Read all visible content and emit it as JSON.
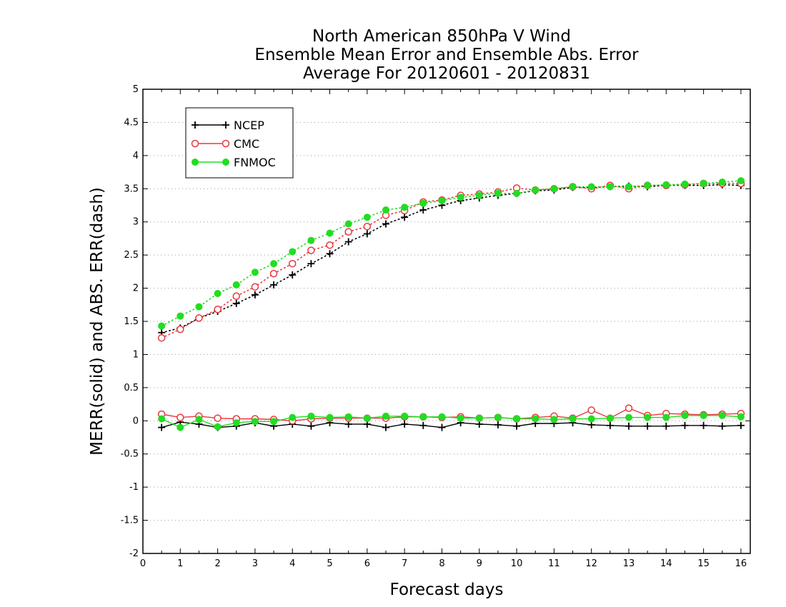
{
  "chart_data": {
    "type": "line",
    "title_lines": [
      "North American 850hPa V Wind",
      "Ensemble Mean Error and Ensemble Abs. Error",
      "Average For 20120601 - 20120831"
    ],
    "xlabel": "Forecast days",
    "ylabel": "MERR(solid) and ABS. ERR(dash)",
    "xlim": [
      0,
      16.25
    ],
    "ylim": [
      -2,
      5
    ],
    "x_ticks": [
      "0",
      "1",
      "2",
      "3",
      "4",
      "5",
      "6",
      "7",
      "8",
      "9",
      "10",
      "11",
      "12",
      "13",
      "14",
      "15",
      "16"
    ],
    "y_ticks": [
      "5",
      "4.5",
      "4",
      "3.5",
      "3",
      "2.5",
      "2",
      "1.5",
      "1",
      "0.5",
      "0",
      "-0.5",
      "-1",
      "-1.5",
      "-2"
    ],
    "grid": "horizontal dotted",
    "legend_position": "top-left",
    "x": [
      0.5,
      1,
      1.5,
      2,
      2.5,
      3,
      3.5,
      4,
      4.5,
      5,
      5.5,
      6,
      6.5,
      7,
      7.5,
      8,
      8.5,
      9,
      9.5,
      10,
      10.5,
      11,
      11.5,
      12,
      12.5,
      13,
      13.5,
      14,
      14.5,
      15,
      15.5,
      16
    ],
    "series": [
      {
        "name": "NCEP",
        "color": "#000000",
        "marker": "plus",
        "merr": [
          -0.1,
          -0.02,
          -0.05,
          -0.1,
          -0.08,
          -0.03,
          -0.08,
          -0.05,
          -0.08,
          -0.03,
          -0.05,
          -0.05,
          -0.1,
          -0.05,
          -0.07,
          -0.1,
          -0.03,
          -0.05,
          -0.06,
          -0.08,
          -0.04,
          -0.04,
          -0.03,
          -0.06,
          -0.07,
          -0.08,
          -0.08,
          -0.08,
          -0.07,
          -0.07,
          -0.08,
          -0.07
        ],
        "abs_err": [
          1.33,
          1.4,
          1.55,
          1.65,
          1.77,
          1.9,
          2.05,
          2.2,
          2.37,
          2.52,
          2.7,
          2.82,
          2.97,
          3.07,
          3.18,
          3.25,
          3.32,
          3.36,
          3.4,
          3.43,
          3.47,
          3.48,
          3.52,
          3.52,
          3.53,
          3.54,
          3.53,
          3.55,
          3.55,
          3.55,
          3.56,
          3.55
        ]
      },
      {
        "name": "CMC",
        "color": "#e8383d",
        "marker": "open-circle",
        "merr": [
          0.1,
          0.05,
          0.07,
          0.04,
          0.03,
          0.03,
          0.02,
          0.0,
          0.03,
          0.04,
          0.04,
          0.04,
          0.04,
          0.06,
          0.06,
          0.05,
          0.06,
          0.04,
          0.05,
          0.03,
          0.05,
          0.07,
          0.04,
          0.16,
          0.04,
          0.19,
          0.08,
          0.11,
          0.1,
          0.09,
          0.1,
          0.11
        ],
        "abs_err": [
          1.25,
          1.38,
          1.55,
          1.68,
          1.88,
          2.02,
          2.22,
          2.37,
          2.57,
          2.65,
          2.85,
          2.93,
          3.1,
          3.17,
          3.3,
          3.33,
          3.4,
          3.42,
          3.45,
          3.51,
          3.48,
          3.5,
          3.53,
          3.5,
          3.55,
          3.5,
          3.55,
          3.55,
          3.56,
          3.58,
          3.58,
          3.58
        ]
      },
      {
        "name": "FNMOC",
        "color": "#22dd22",
        "marker": "filled-circle",
        "merr": [
          0.03,
          -0.1,
          0.02,
          -0.09,
          -0.03,
          -0.01,
          -0.01,
          0.05,
          0.07,
          0.05,
          0.06,
          0.04,
          0.07,
          0.07,
          0.06,
          0.06,
          0.04,
          0.04,
          0.05,
          0.03,
          0.03,
          0.02,
          0.03,
          0.03,
          0.04,
          0.05,
          0.05,
          0.05,
          0.08,
          0.08,
          0.08,
          0.06
        ],
        "abs_err": [
          1.43,
          1.58,
          1.72,
          1.92,
          2.05,
          2.24,
          2.37,
          2.55,
          2.72,
          2.83,
          2.97,
          3.07,
          3.18,
          3.22,
          3.28,
          3.32,
          3.37,
          3.4,
          3.43,
          3.43,
          3.48,
          3.5,
          3.53,
          3.53,
          3.53,
          3.53,
          3.55,
          3.56,
          3.57,
          3.58,
          3.6,
          3.62
        ]
      }
    ]
  }
}
